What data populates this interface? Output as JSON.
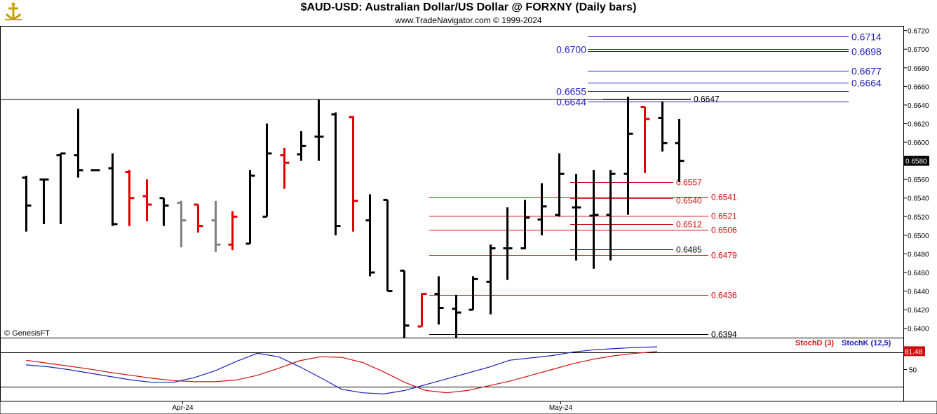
{
  "header": {
    "title": "$AUD-USD:  Australian Dollar/US Dollar @ FORXNY  (Daily bars)",
    "subtitle": "www.TradeNavigator.com © 1999-2024"
  },
  "watermark": "© GenesisFT",
  "colors": {
    "up": "#000000",
    "down": "#e00000",
    "neutral": "#808080",
    "fib_blue": "#1f1fbf",
    "fib_red": "#d01010",
    "stoch_d": "#d01010",
    "stoch_k": "#1f1fbf"
  },
  "chart_data": [
    {
      "type": "ohlc",
      "ylim": [
        0.639,
        0.6725
      ],
      "y_ticks": [
        "0.6720",
        "0.6700",
        "0.6680",
        "0.6660",
        "0.6640",
        "0.6620",
        "0.6600",
        "0.6580",
        "0.6560",
        "0.6540",
        "0.6520",
        "0.6500",
        "0.6480",
        "0.6460",
        "0.6440",
        "0.6420",
        "0.6400"
      ],
      "x_labels": [
        {
          "label": "Apr-24",
          "bar": 9
        },
        {
          "label": "May-24",
          "bar": 31
        }
      ],
      "last_price": "0.6580",
      "bars": [
        {
          "o": 0.6562,
          "h": 0.6564,
          "l": 0.6504,
          "c": 0.6532,
          "col": "up"
        },
        {
          "o": 0.656,
          "h": 0.656,
          "l": 0.6512,
          "c": 0.656,
          "col": "up"
        },
        {
          "o": 0.6586,
          "h": 0.6588,
          "l": 0.6512,
          "c": 0.6588,
          "col": "up"
        },
        {
          "o": 0.6586,
          "h": 0.6636,
          "l": 0.6562,
          "c": 0.657,
          "col": "up"
        },
        {
          "o": 0.657,
          "h": 0.657,
          "l": 0.657,
          "c": 0.657,
          "col": "up"
        },
        {
          "o": 0.6572,
          "h": 0.6588,
          "l": 0.651,
          "c": 0.6512,
          "col": "up"
        },
        {
          "o": 0.6568,
          "h": 0.657,
          "l": 0.651,
          "c": 0.654,
          "col": "down"
        },
        {
          "o": 0.6542,
          "h": 0.656,
          "l": 0.6515,
          "c": 0.6533,
          "col": "down"
        },
        {
          "o": 0.654,
          "h": 0.654,
          "l": 0.651,
          "c": 0.6532,
          "col": "up"
        },
        {
          "o": 0.6535,
          "h": 0.6537,
          "l": 0.6487,
          "c": 0.6516,
          "col": "neutral"
        },
        {
          "o": 0.6533,
          "h": 0.6533,
          "l": 0.6503,
          "c": 0.651,
          "col": "down"
        },
        {
          "o": 0.6516,
          "h": 0.6537,
          "l": 0.6482,
          "c": 0.649,
          "col": "neutral"
        },
        {
          "o": 0.649,
          "h": 0.6526,
          "l": 0.6484,
          "c": 0.652,
          "col": "down"
        },
        {
          "o": 0.6491,
          "h": 0.657,
          "l": 0.6491,
          "c": 0.6564,
          "col": "up"
        },
        {
          "o": 0.652,
          "h": 0.662,
          "l": 0.652,
          "c": 0.6588,
          "col": "up"
        },
        {
          "o": 0.6586,
          "h": 0.6594,
          "l": 0.655,
          "c": 0.6578,
          "col": "down"
        },
        {
          "o": 0.6587,
          "h": 0.6612,
          "l": 0.658,
          "c": 0.6596,
          "col": "up"
        },
        {
          "o": 0.6606,
          "h": 0.6646,
          "l": 0.658,
          "c": 0.6606,
          "col": "up"
        },
        {
          "o": 0.663,
          "h": 0.6632,
          "l": 0.65,
          "c": 0.651,
          "col": "up"
        },
        {
          "o": 0.6627,
          "h": 0.6628,
          "l": 0.6504,
          "c": 0.6537,
          "col": "down"
        },
        {
          "o": 0.6516,
          "h": 0.6544,
          "l": 0.6456,
          "c": 0.646,
          "col": "up"
        },
        {
          "o": 0.6538,
          "h": 0.6538,
          "l": 0.644,
          "c": 0.644,
          "col": "up"
        },
        {
          "o": 0.6462,
          "h": 0.6462,
          "l": 0.639,
          "c": 0.6403,
          "col": "up"
        },
        {
          "o": 0.6402,
          "h": 0.6438,
          "l": 0.6402,
          "c": 0.6437,
          "col": "down"
        },
        {
          "o": 0.6437,
          "h": 0.6456,
          "l": 0.6404,
          "c": 0.6422,
          "col": "up"
        },
        {
          "o": 0.6421,
          "h": 0.6436,
          "l": 0.639,
          "c": 0.6417,
          "col": "up"
        },
        {
          "o": 0.642,
          "h": 0.6456,
          "l": 0.642,
          "c": 0.6453,
          "col": "up"
        },
        {
          "o": 0.645,
          "h": 0.649,
          "l": 0.6415,
          "c": 0.6486,
          "col": "up"
        },
        {
          "o": 0.6486,
          "h": 0.653,
          "l": 0.6452,
          "c": 0.6486,
          "col": "up"
        },
        {
          "o": 0.6486,
          "h": 0.6538,
          "l": 0.6485,
          "c": 0.6519,
          "col": "up"
        },
        {
          "o": 0.6517,
          "h": 0.6556,
          "l": 0.65,
          "c": 0.6531,
          "col": "up"
        },
        {
          "o": 0.6522,
          "h": 0.6588,
          "l": 0.652,
          "c": 0.6566,
          "col": "up"
        },
        {
          "o": 0.653,
          "h": 0.6566,
          "l": 0.6473,
          "c": 0.653,
          "col": "up"
        },
        {
          "o": 0.6521,
          "h": 0.657,
          "l": 0.6464,
          "c": 0.6522,
          "col": "up"
        },
        {
          "o": 0.6522,
          "h": 0.657,
          "l": 0.6473,
          "c": 0.6566,
          "col": "up"
        },
        {
          "o": 0.6566,
          "h": 0.6649,
          "l": 0.6522,
          "c": 0.6609,
          "col": "up"
        },
        {
          "o": 0.6638,
          "h": 0.6638,
          "l": 0.6567,
          "c": 0.6625,
          "col": "down"
        },
        {
          "o": 0.6626,
          "h": 0.6644,
          "l": 0.659,
          "c": 0.6599,
          "col": "up"
        },
        {
          "o": 0.6599,
          "h": 0.6625,
          "l": 0.6557,
          "c": 0.658,
          "col": "up"
        }
      ],
      "h_lines": [
        {
          "value": 0.6714,
          "label": "0.6714",
          "color": "blue",
          "side": "right",
          "bold": false
        },
        {
          "value": 0.67,
          "label": "0.6700",
          "color": "blue",
          "side": "left",
          "bold": false
        },
        {
          "value": 0.6698,
          "label": "0.6698",
          "color": "blue",
          "side": "right",
          "bold": false
        },
        {
          "value": 0.6677,
          "label": "0.6677",
          "color": "blue",
          "side": "right",
          "bold": false
        },
        {
          "value": 0.6664,
          "label": "0.6664",
          "color": "blue",
          "side": "right",
          "bold": false
        },
        {
          "value": 0.6655,
          "label": "0.6655",
          "color": "blue",
          "side": "left",
          "bold": false
        },
        {
          "value": 0.6644,
          "label": "0.6644",
          "color": "blue",
          "side": "left",
          "bold": false
        },
        {
          "value": 0.6647,
          "label": "0.6647",
          "color": "black",
          "side": "mid",
          "bold": false
        },
        {
          "value": 0.6557,
          "label": "0.6557",
          "color": "red",
          "side": "mid",
          "bold": false
        },
        {
          "value": 0.6541,
          "label": "0.6541",
          "color": "red",
          "side": "right",
          "bold": false
        },
        {
          "value": 0.654,
          "label": "0.6540",
          "color": "red",
          "side": "mid",
          "bold": false
        },
        {
          "value": 0.6521,
          "label": "0.6521",
          "color": "red",
          "side": "right",
          "bold": false
        },
        {
          "value": 0.6512,
          "label": "0.6512",
          "color": "red",
          "side": "mid",
          "bold": false
        },
        {
          "value": 0.6506,
          "label": "0.6506",
          "color": "red",
          "side": "right",
          "bold": false
        },
        {
          "value": 0.6485,
          "label": "0.6485",
          "color": "black",
          "side": "mid",
          "bold": false
        },
        {
          "value": 0.6479,
          "label": "0.6479",
          "color": "red",
          "side": "right",
          "bold": false
        },
        {
          "value": 0.6436,
          "label": "0.6436",
          "color": "red",
          "side": "right",
          "bold": false
        },
        {
          "value": 0.6394,
          "label": "0.6394",
          "color": "black",
          "side": "right",
          "bold": false
        }
      ]
    },
    {
      "type": "line",
      "ylim": [
        0,
        100
      ],
      "tick_label": "50",
      "last_value": "81.48",
      "series": [
        {
          "name": "StochD (3)",
          "color": "red",
          "values": [
            66,
            61,
            56,
            51,
            45,
            40,
            35,
            31,
            29,
            29,
            32,
            40,
            52,
            65,
            72,
            71,
            62,
            46,
            28,
            14,
            10,
            14,
            22,
            30,
            40,
            50,
            60,
            68,
            74,
            78,
            81
          ]
        },
        {
          "name": "StochK (12,5)",
          "color": "blue",
          "values": [
            58,
            55,
            50,
            44,
            38,
            32,
            28,
            28,
            36,
            48,
            64,
            78,
            72,
            55,
            36,
            16,
            10,
            8,
            14,
            24,
            34,
            44,
            54,
            66,
            70,
            74,
            80,
            84,
            86,
            88,
            89
          ]
        }
      ]
    }
  ]
}
